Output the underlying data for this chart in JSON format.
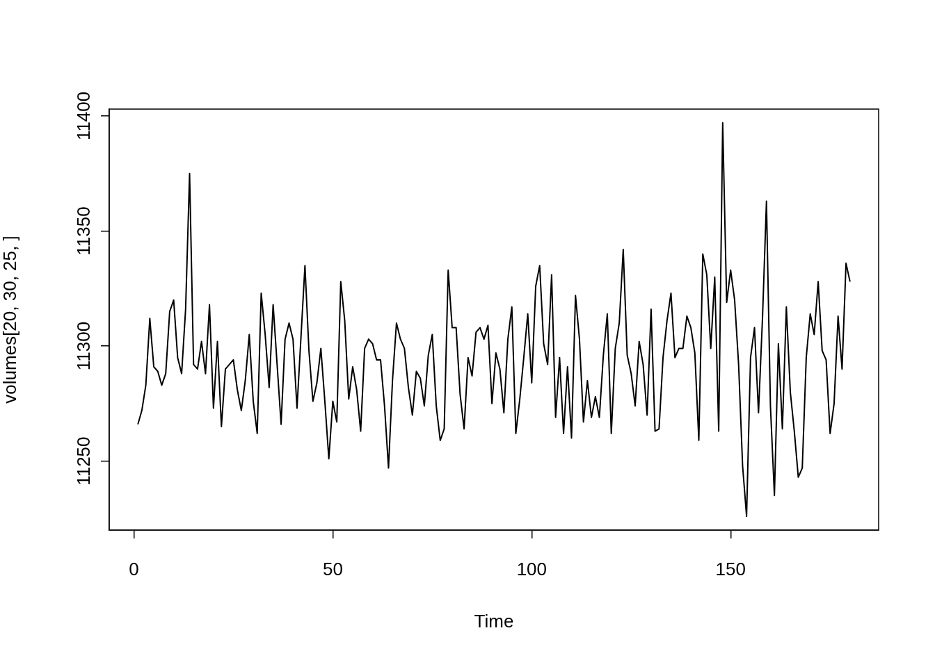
{
  "chart_data": {
    "type": "line",
    "xlabel": "Time",
    "ylabel": "volumes[20, 30, 25, ]",
    "series": [
      {
        "color": "#000000",
        "x": [
          1,
          2,
          3,
          4,
          5,
          6,
          7,
          8,
          9,
          10,
          11,
          12,
          13,
          14,
          15,
          16,
          17,
          18,
          19,
          20,
          21,
          22,
          23,
          24,
          25,
          26,
          27,
          28,
          29,
          30,
          31,
          32,
          33,
          34,
          35,
          36,
          37,
          38,
          39,
          40,
          41,
          42,
          43,
          44,
          45,
          46,
          47,
          48,
          49,
          50,
          51,
          52,
          53,
          54,
          55,
          56,
          57,
          58,
          59,
          60,
          61,
          62,
          63,
          64,
          65,
          66,
          67,
          68,
          69,
          70,
          71,
          72,
          73,
          74,
          75,
          76,
          77,
          78,
          79,
          80,
          81,
          82,
          83,
          84,
          85,
          86,
          87,
          88,
          89,
          90,
          91,
          92,
          93,
          94,
          95,
          96,
          97,
          98,
          99,
          100,
          101,
          102,
          103,
          104,
          105,
          106,
          107,
          108,
          109,
          110,
          111,
          112,
          113,
          114,
          115,
          116,
          117,
          118,
          119,
          120,
          121,
          122,
          123,
          124,
          125,
          126,
          127,
          128,
          129,
          130,
          131,
          132,
          133,
          134,
          135,
          136,
          137,
          138,
          139,
          140,
          141,
          142,
          143,
          144,
          145,
          146,
          147,
          148,
          149,
          150,
          151,
          152,
          153,
          154,
          155,
          156,
          157,
          158,
          159,
          160,
          161,
          162,
          163,
          164,
          165,
          166,
          167,
          168,
          169,
          170,
          171,
          172,
          173,
          174,
          175,
          176,
          177,
          178,
          179,
          180
        ],
        "values": [
          11266,
          11272,
          11283,
          11312,
          11291,
          11289,
          11283,
          11288,
          11315,
          11320,
          11295,
          11288,
          11316,
          11375,
          11292,
          11290,
          11302,
          11288,
          11318,
          11273,
          11302,
          11265,
          11290,
          11292,
          11294,
          11281,
          11272,
          11285,
          11305,
          11276,
          11262,
          11323,
          11305,
          11282,
          11318,
          11292,
          11266,
          11303,
          11310,
          11303,
          11273,
          11304,
          11335,
          11298,
          11276,
          11284,
          11299,
          11276,
          11251,
          11276,
          11267,
          11328,
          11311,
          11277,
          11291,
          11281,
          11263,
          11299,
          11303,
          11301,
          11294,
          11294,
          11274,
          11247,
          11285,
          11310,
          11303,
          11299,
          11282,
          11270,
          11289,
          11286,
          11274,
          11296,
          11305,
          11274,
          11259,
          11264,
          11333,
          11308,
          11308,
          11279,
          11264,
          11295,
          11287,
          11306,
          11308,
          11303,
          11309,
          11275,
          11297,
          11290,
          11271,
          11303,
          11317,
          11262,
          11277,
          11295,
          11314,
          11284,
          11326,
          11335,
          11301,
          11292,
          11331,
          11269,
          11295,
          11262,
          11291,
          11260,
          11322,
          11303,
          11267,
          11285,
          11269,
          11278,
          11269,
          11296,
          11314,
          11262,
          11299,
          11310,
          11342,
          11296,
          11288,
          11274,
          11302,
          11292,
          11270,
          11316,
          11263,
          11264,
          11295,
          11311,
          11323,
          11295,
          11299,
          11299,
          11313,
          11308,
          11297,
          11259,
          11340,
          11331,
          11299,
          11330,
          11263,
          11397,
          11319,
          11333,
          11320,
          11292,
          11248,
          11226,
          11295,
          11308,
          11271,
          11312,
          11363,
          11274,
          11235,
          11301,
          11264,
          11317,
          11280,
          11263,
          11243,
          11247,
          11295,
          11314,
          11305,
          11328,
          11298,
          11294,
          11262,
          11275,
          11313,
          11290,
          11336,
          11328
        ]
      }
    ],
    "xlim": [
      -6.2,
      187.2
    ],
    "xticks": [
      0,
      50,
      100,
      150
    ],
    "ylim": [
      11220,
      11403
    ],
    "yticks": [
      11250,
      11300,
      11350,
      11400
    ],
    "grid": false,
    "legend": false,
    "marker": "none",
    "line_style": "solid"
  }
}
